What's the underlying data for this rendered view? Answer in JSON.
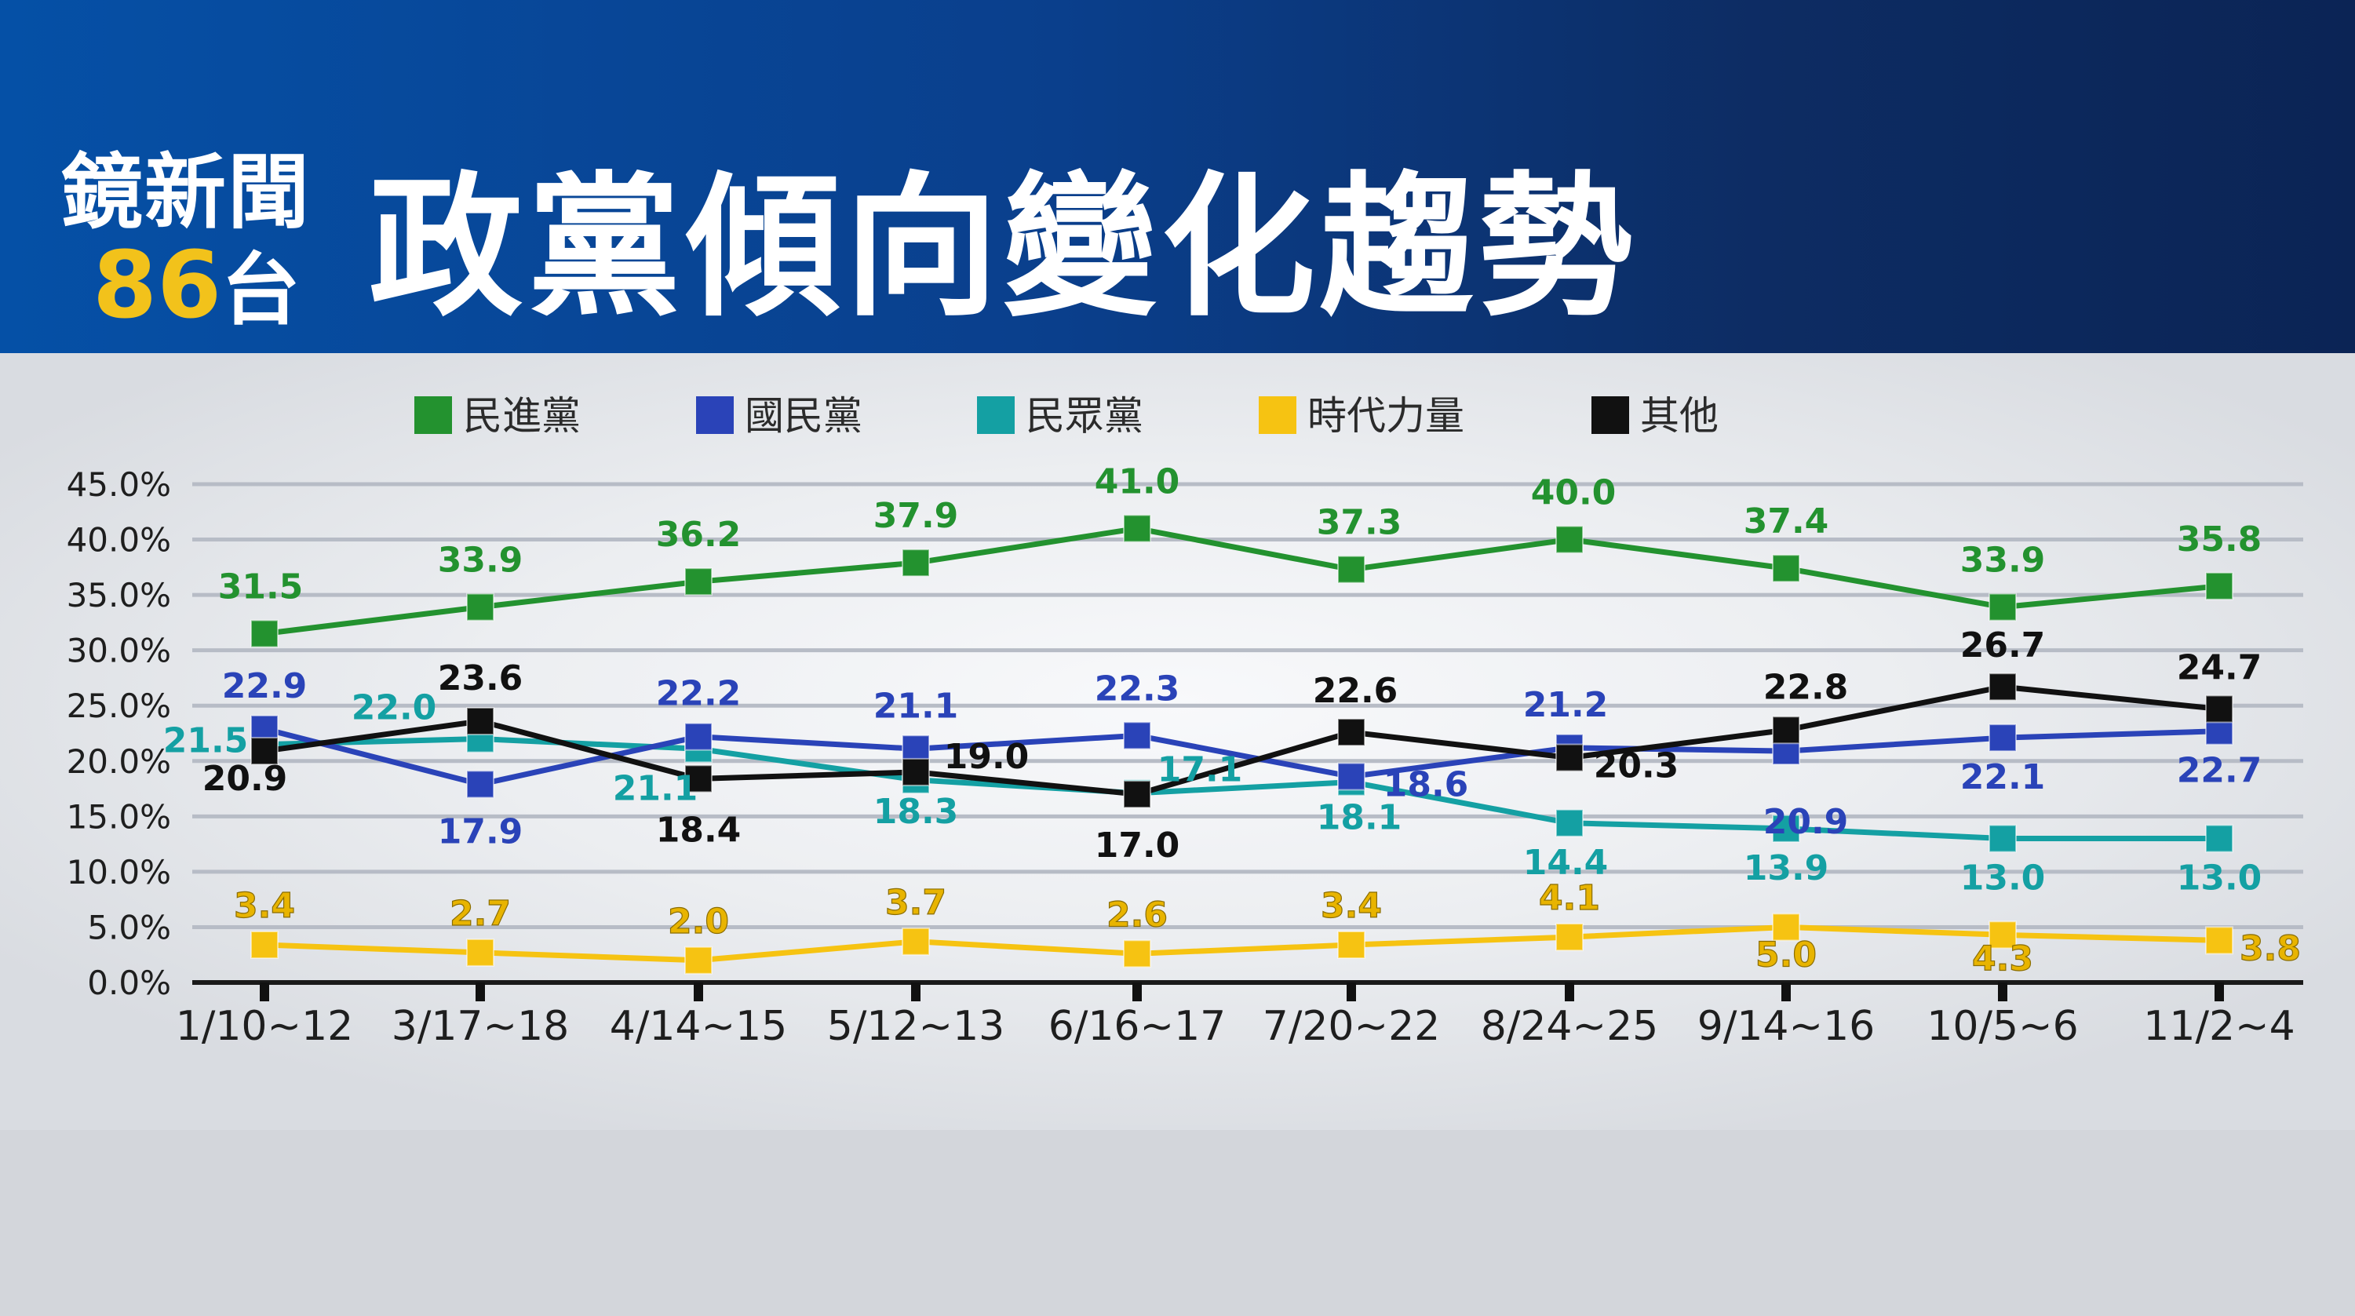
{
  "header": {
    "logo_line1": "鏡新聞",
    "logo_number": "86",
    "logo_suffix": "台",
    "title": "政黨傾向變化趨勢"
  },
  "chart_data": {
    "type": "line",
    "title": "政黨傾向變化趨勢",
    "categories": [
      "1/10~12",
      "3/17~18",
      "4/14~15",
      "5/12~13",
      "6/16~17",
      "7/20~22",
      "8/24~25",
      "9/14~16",
      "10/5~6",
      "11/2~4"
    ],
    "ylim": [
      0,
      45
    ],
    "yticks": [
      "0.0%",
      "5.0%",
      "10.0%",
      "15.0%",
      "20.0%",
      "25.0%",
      "30.0%",
      "35.0%",
      "40.0%",
      "45.0%"
    ],
    "grid": true,
    "legend_position": "top",
    "series": [
      {
        "name": "民進黨",
        "color": "#23922f",
        "label_color": "#23922f",
        "values": [
          31.5,
          33.9,
          36.2,
          37.9,
          41.0,
          37.3,
          40.0,
          37.4,
          33.9,
          35.8
        ]
      },
      {
        "name": "國民黨",
        "color": "#2a43b8",
        "label_color": "#2a43b8",
        "values": [
          22.9,
          17.9,
          22.2,
          21.1,
          22.3,
          18.6,
          21.2,
          20.9,
          22.1,
          22.7
        ]
      },
      {
        "name": "民眾黨",
        "color": "#14a0a3",
        "label_color": "#14a0a3",
        "values": [
          21.5,
          22.0,
          21.1,
          18.3,
          17.1,
          18.1,
          14.4,
          13.9,
          13.0,
          13.0
        ]
      },
      {
        "name": "時代力量",
        "color": "#f6c312",
        "label_color": "#e8b400",
        "values": [
          3.4,
          2.7,
          2.0,
          3.7,
          2.6,
          3.4,
          4.1,
          5.0,
          4.3,
          3.8
        ]
      },
      {
        "name": "其他",
        "color": "#111111",
        "label_color": "#111111",
        "values": [
          20.9,
          23.6,
          18.4,
          19.0,
          17.0,
          22.6,
          20.3,
          22.8,
          26.7,
          24.7
        ]
      }
    ]
  }
}
